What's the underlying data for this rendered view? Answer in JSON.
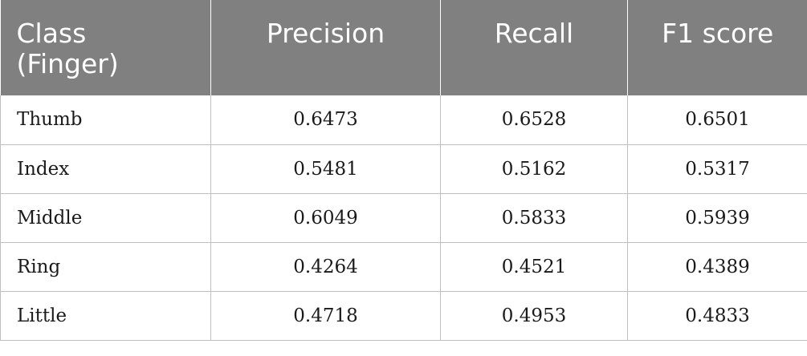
{
  "table": {
    "headers": [
      "Class (Finger)",
      "Precision",
      "Recall",
      "F1 score"
    ],
    "header_line1": "Class",
    "header_line2": "(Finger)",
    "rows": [
      [
        "Thumb",
        "0.6473",
        "0.6528",
        "0.6501"
      ],
      [
        "Index",
        "0.5481",
        "0.5162",
        "0.5317"
      ],
      [
        "Middle",
        "0.6049",
        "0.5833",
        "0.5939"
      ],
      [
        "Ring",
        "0.4264",
        "0.4521",
        "0.4389"
      ],
      [
        "Little",
        "0.4718",
        "0.4953",
        "0.4833"
      ]
    ]
  },
  "colors": {
    "header_bg": "#808080",
    "header_text": "#ffffff",
    "grid": "#bfbfbf"
  }
}
